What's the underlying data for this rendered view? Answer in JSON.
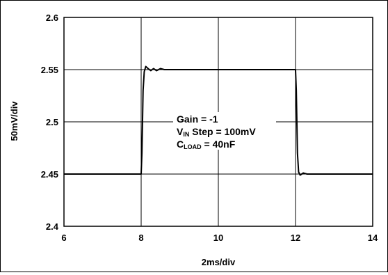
{
  "chart_data": {
    "type": "line",
    "title": "",
    "xlabel": "2ms/div",
    "ylabel": "50mV/div",
    "xlim": [
      6,
      14
    ],
    "ylim": [
      2.4,
      2.6
    ],
    "x_ticks": [
      "6",
      "8",
      "10",
      "12",
      "14"
    ],
    "y_ticks": [
      "2.6",
      "2.55",
      "2.5",
      "2.45",
      "2.4"
    ],
    "grid": true,
    "legend": "none",
    "series": [
      {
        "points": [
          [
            6.0,
            2.45
          ],
          [
            8.0,
            2.45
          ],
          [
            8.02,
            2.47
          ],
          [
            8.05,
            2.53
          ],
          [
            8.08,
            2.548
          ],
          [
            8.12,
            2.553
          ],
          [
            8.18,
            2.551
          ],
          [
            8.25,
            2.549
          ],
          [
            8.32,
            2.551
          ],
          [
            8.4,
            2.549
          ],
          [
            8.5,
            2.551
          ],
          [
            8.6,
            2.55
          ],
          [
            12.0,
            2.55
          ],
          [
            12.02,
            2.53
          ],
          [
            12.05,
            2.47
          ],
          [
            12.08,
            2.452
          ],
          [
            12.12,
            2.449
          ],
          [
            12.2,
            2.451
          ],
          [
            12.3,
            2.45
          ],
          [
            14.0,
            2.45
          ]
        ]
      }
    ],
    "annotation": {
      "line1": "Gain = -1",
      "line2_prefix": "V",
      "line2_sub": "IN",
      "line2_suffix": " Step = 100mV",
      "line3_prefix": "C",
      "line3_sub": "LOAD",
      "line3_suffix": " = 40nF"
    },
    "colors": {
      "trace": "#000000",
      "grid": "#000000",
      "background": "#ffffff"
    }
  }
}
